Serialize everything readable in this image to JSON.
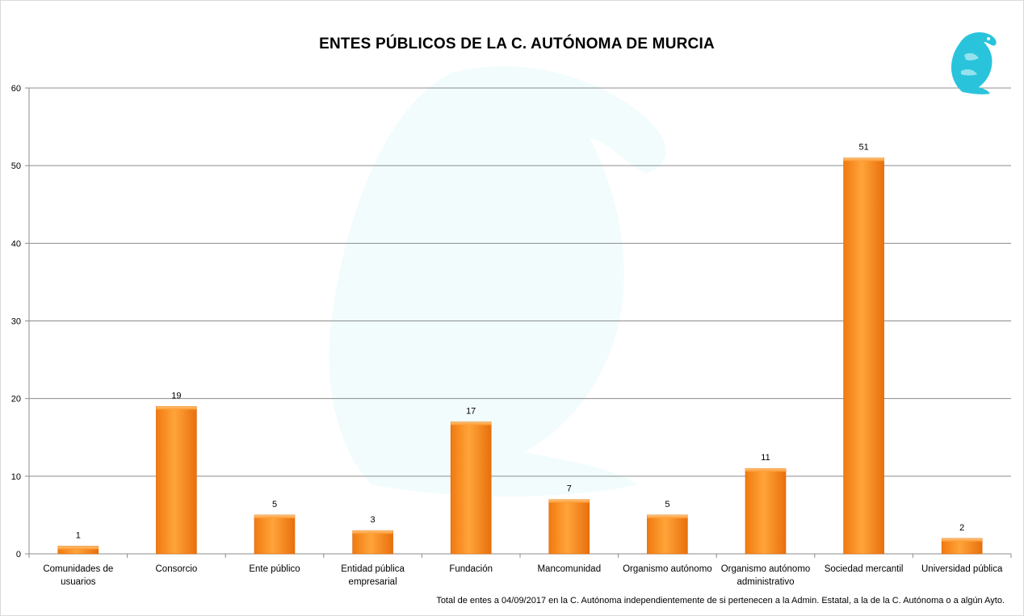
{
  "chart_data": {
    "type": "bar",
    "title": "ENTES PÚBLICOS DE LA C. AUTÓNOMA DE MURCIA",
    "categories": [
      [
        "Comunidades de",
        "usuarios"
      ],
      [
        "Consorcio"
      ],
      [
        "Ente público"
      ],
      [
        "Entidad pública",
        "empresarial"
      ],
      [
        "Fundación"
      ],
      [
        "Mancomunidad"
      ],
      [
        "Organismo autónomo"
      ],
      [
        "Organismo autónomo",
        "administrativo"
      ],
      [
        "Sociedad mercantil"
      ],
      [
        "Universidad pública"
      ]
    ],
    "values": [
      1,
      19,
      5,
      3,
      17,
      7,
      5,
      11,
      51,
      2
    ],
    "ylim": [
      0,
      60
    ],
    "yticks": [
      0,
      10,
      20,
      30,
      40,
      50,
      60
    ],
    "grid": true,
    "bar_color": "#ff8c1a",
    "data_labels": true
  },
  "footnote": "Total de entes a 04/09/2017 en la C. Autónoma independientemente de si pertenecen a la Admin. Estatal, a la de la C. Autónoma o a algún Ayto.",
  "logo": {
    "icon": "griffin-icon",
    "color": "#29c4dc"
  }
}
